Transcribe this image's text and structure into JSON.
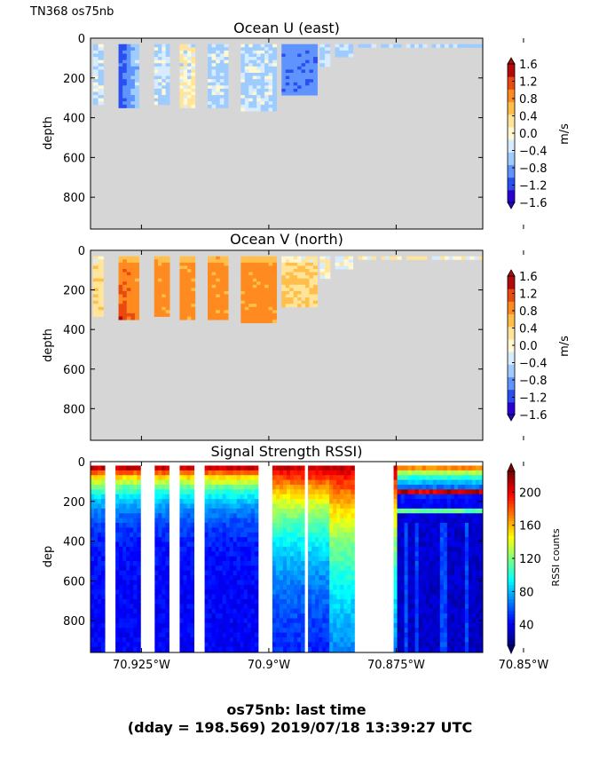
{
  "header": {
    "cruise_label": "TN368 os75nb"
  },
  "footer": {
    "line1": "os75nb: last time",
    "line2": "(dday = 198.569) 2019/07/18 13:39:27 UTC"
  },
  "colors": {
    "missing": "#d6d6d6",
    "jet": [
      "#00007f",
      "#0000ff",
      "#007fff",
      "#00ffff",
      "#7fff7f",
      "#ffff00",
      "#ff7f00",
      "#ff0000",
      "#7f0000"
    ],
    "velocity_levels": [
      "#2a00d4",
      "#2b4ef0",
      "#5f94ff",
      "#9fccff",
      "#d8ecff",
      "#fff8d0",
      "#ffe49a",
      "#ffbf4a",
      "#ff8a20",
      "#ea4a10",
      "#b20a0a"
    ]
  },
  "chart_data": [
    {
      "type": "heatmap",
      "title": "Ocean U (east)",
      "ylabel": "depth",
      "ylim": [
        960,
        0
      ],
      "yticks": [
        0,
        200,
        400,
        600,
        800
      ],
      "xlim": [
        -70.935,
        -70.858
      ],
      "xticks": [
        -70.925,
        -70.9,
        -70.875,
        -70.85
      ],
      "xtick_labels": [],
      "colorbar": {
        "label": "m/s",
        "ticks": [
          "1.6",
          "1.2",
          "0.8",
          "0.4",
          "0.0",
          "−0.4",
          "−0.8",
          "−1.2",
          "−1.6"
        ],
        "range": [
          -1.6,
          1.6
        ]
      },
      "approx_data": "profiles to ~340 m west of -70.89 W, surface layer only east; values mostly -0.4 to 0.4 m/s, strong negative near -70.925 W"
    },
    {
      "type": "heatmap",
      "title": "Ocean V (north)",
      "ylabel": "depth",
      "ylim": [
        960,
        0
      ],
      "yticks": [
        0,
        200,
        400,
        600,
        800
      ],
      "xlim": [
        -70.935,
        -70.858
      ],
      "xticks": [
        -70.925,
        -70.9,
        -70.875,
        -70.85
      ],
      "xtick_labels": [],
      "colorbar": {
        "label": "m/s",
        "ticks": [
          "1.6",
          "1.2",
          "0.8",
          "0.4",
          "0.0",
          "−0.4",
          "−0.8",
          "−1.2",
          "−1.6"
        ],
        "range": [
          -1.6,
          1.6
        ]
      },
      "approx_data": "northward flow 0.8-1.2 m/s in upper 340 m west of -70.89 W, up to 1.6 m/s near -70.925 W"
    },
    {
      "type": "heatmap",
      "title": "Signal Strength RSSI)",
      "ylabel": "dep",
      "ylim": [
        960,
        0
      ],
      "yticks": [
        0,
        200,
        400,
        600,
        800
      ],
      "xlim": [
        -70.935,
        -70.858
      ],
      "xticks": [
        -70.925,
        -70.9,
        -70.875,
        -70.85
      ],
      "xtick_labels": [
        "70.925°W",
        "70.9°W",
        "70.875°W",
        "70.85°W"
      ],
      "colorbar": {
        "label": "RSSI counts",
        "ticks": [
          "200",
          "160",
          "120",
          "80",
          "40"
        ],
        "range": [
          15,
          225
        ]
      },
      "approx_data": "RSSI ~200 near surface decaying to ~30-60 at depth; gaps between profile groups"
    }
  ]
}
